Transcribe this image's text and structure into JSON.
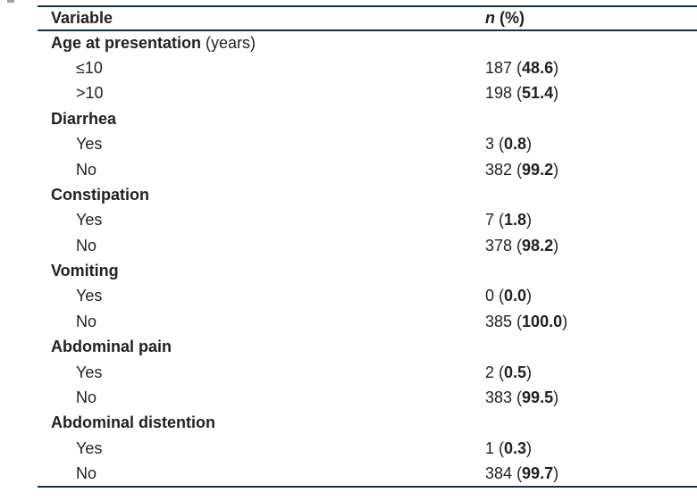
{
  "table": {
    "header": {
      "variable_label": "Variable",
      "n_label": "n",
      "n_rest": " (%)"
    },
    "format": {
      "open_paren": " (",
      "close_paren": ")"
    },
    "rows": [
      {
        "type": "group",
        "label": "Age at presentation",
        "suffix": " (years)"
      },
      {
        "type": "item",
        "label": "≤10",
        "n": "187",
        "pct": "48.6"
      },
      {
        "type": "item",
        "label": ">10",
        "n": "198",
        "pct": "51.4"
      },
      {
        "type": "group",
        "label": "Diarrhea",
        "suffix": ""
      },
      {
        "type": "item",
        "label": "Yes",
        "n": "3",
        "pct": "0.8"
      },
      {
        "type": "item",
        "label": "No",
        "n": "382",
        "pct": "99.2"
      },
      {
        "type": "group",
        "label": "Constipation",
        "suffix": ""
      },
      {
        "type": "item",
        "label": "Yes",
        "n": "7",
        "pct": "1.8"
      },
      {
        "type": "item",
        "label": "No",
        "n": "378",
        "pct": "98.2"
      },
      {
        "type": "group",
        "label": "Vomiting",
        "suffix": ""
      },
      {
        "type": "item",
        "label": "Yes",
        "n": "0",
        "pct": "0.0"
      },
      {
        "type": "item",
        "label": "No",
        "n": "385",
        "pct": "100.0"
      },
      {
        "type": "group",
        "label": "Abdominal pain",
        "suffix": ""
      },
      {
        "type": "item",
        "label": "Yes",
        "n": "2",
        "pct": "0.5"
      },
      {
        "type": "item",
        "label": "No",
        "n": "383",
        "pct": "99.5"
      },
      {
        "type": "group",
        "label": "Abdominal distention",
        "suffix": ""
      },
      {
        "type": "item",
        "label": "Yes",
        "n": "1",
        "pct": "0.3"
      },
      {
        "type": "item",
        "label": "No",
        "n": "384",
        "pct": "99.7"
      }
    ]
  },
  "colors": {
    "rule": "#113349",
    "text": "#231f20"
  }
}
